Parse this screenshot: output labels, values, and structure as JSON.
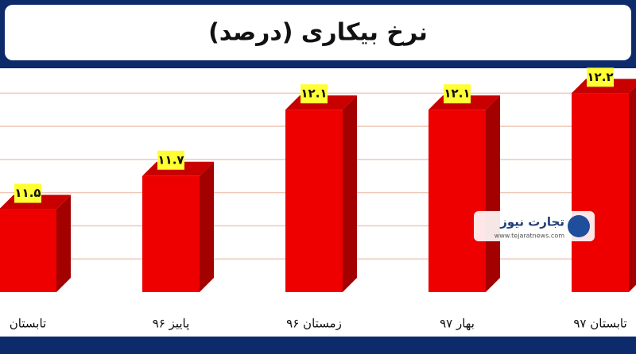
{
  "chart_data": {
    "type": "bar3d",
    "title": "نرخ بیکاری (درصد)",
    "categories": [
      "تابستان",
      "پاییز ۹۶",
      "زمستان ۹۶",
      "بهار ۹۷",
      "تابستان ۹۷"
    ],
    "values": [
      11.5,
      11.7,
      12.1,
      12.1,
      12.2
    ],
    "value_labels": [
      "۱۱.۵",
      "۱۱.۷",
      "۱۲.۱",
      "۱۲.۱",
      "۱۲.۲"
    ],
    "color": "#ee0000",
    "ylim": [
      11,
      12.35
    ],
    "yticks": [
      11.2,
      11.4,
      11.6,
      11.8,
      12.0,
      12.2
    ],
    "grid": true,
    "watermark": {
      "name": "تجارت نیوز",
      "url": "www.tejaratnews.com"
    }
  }
}
